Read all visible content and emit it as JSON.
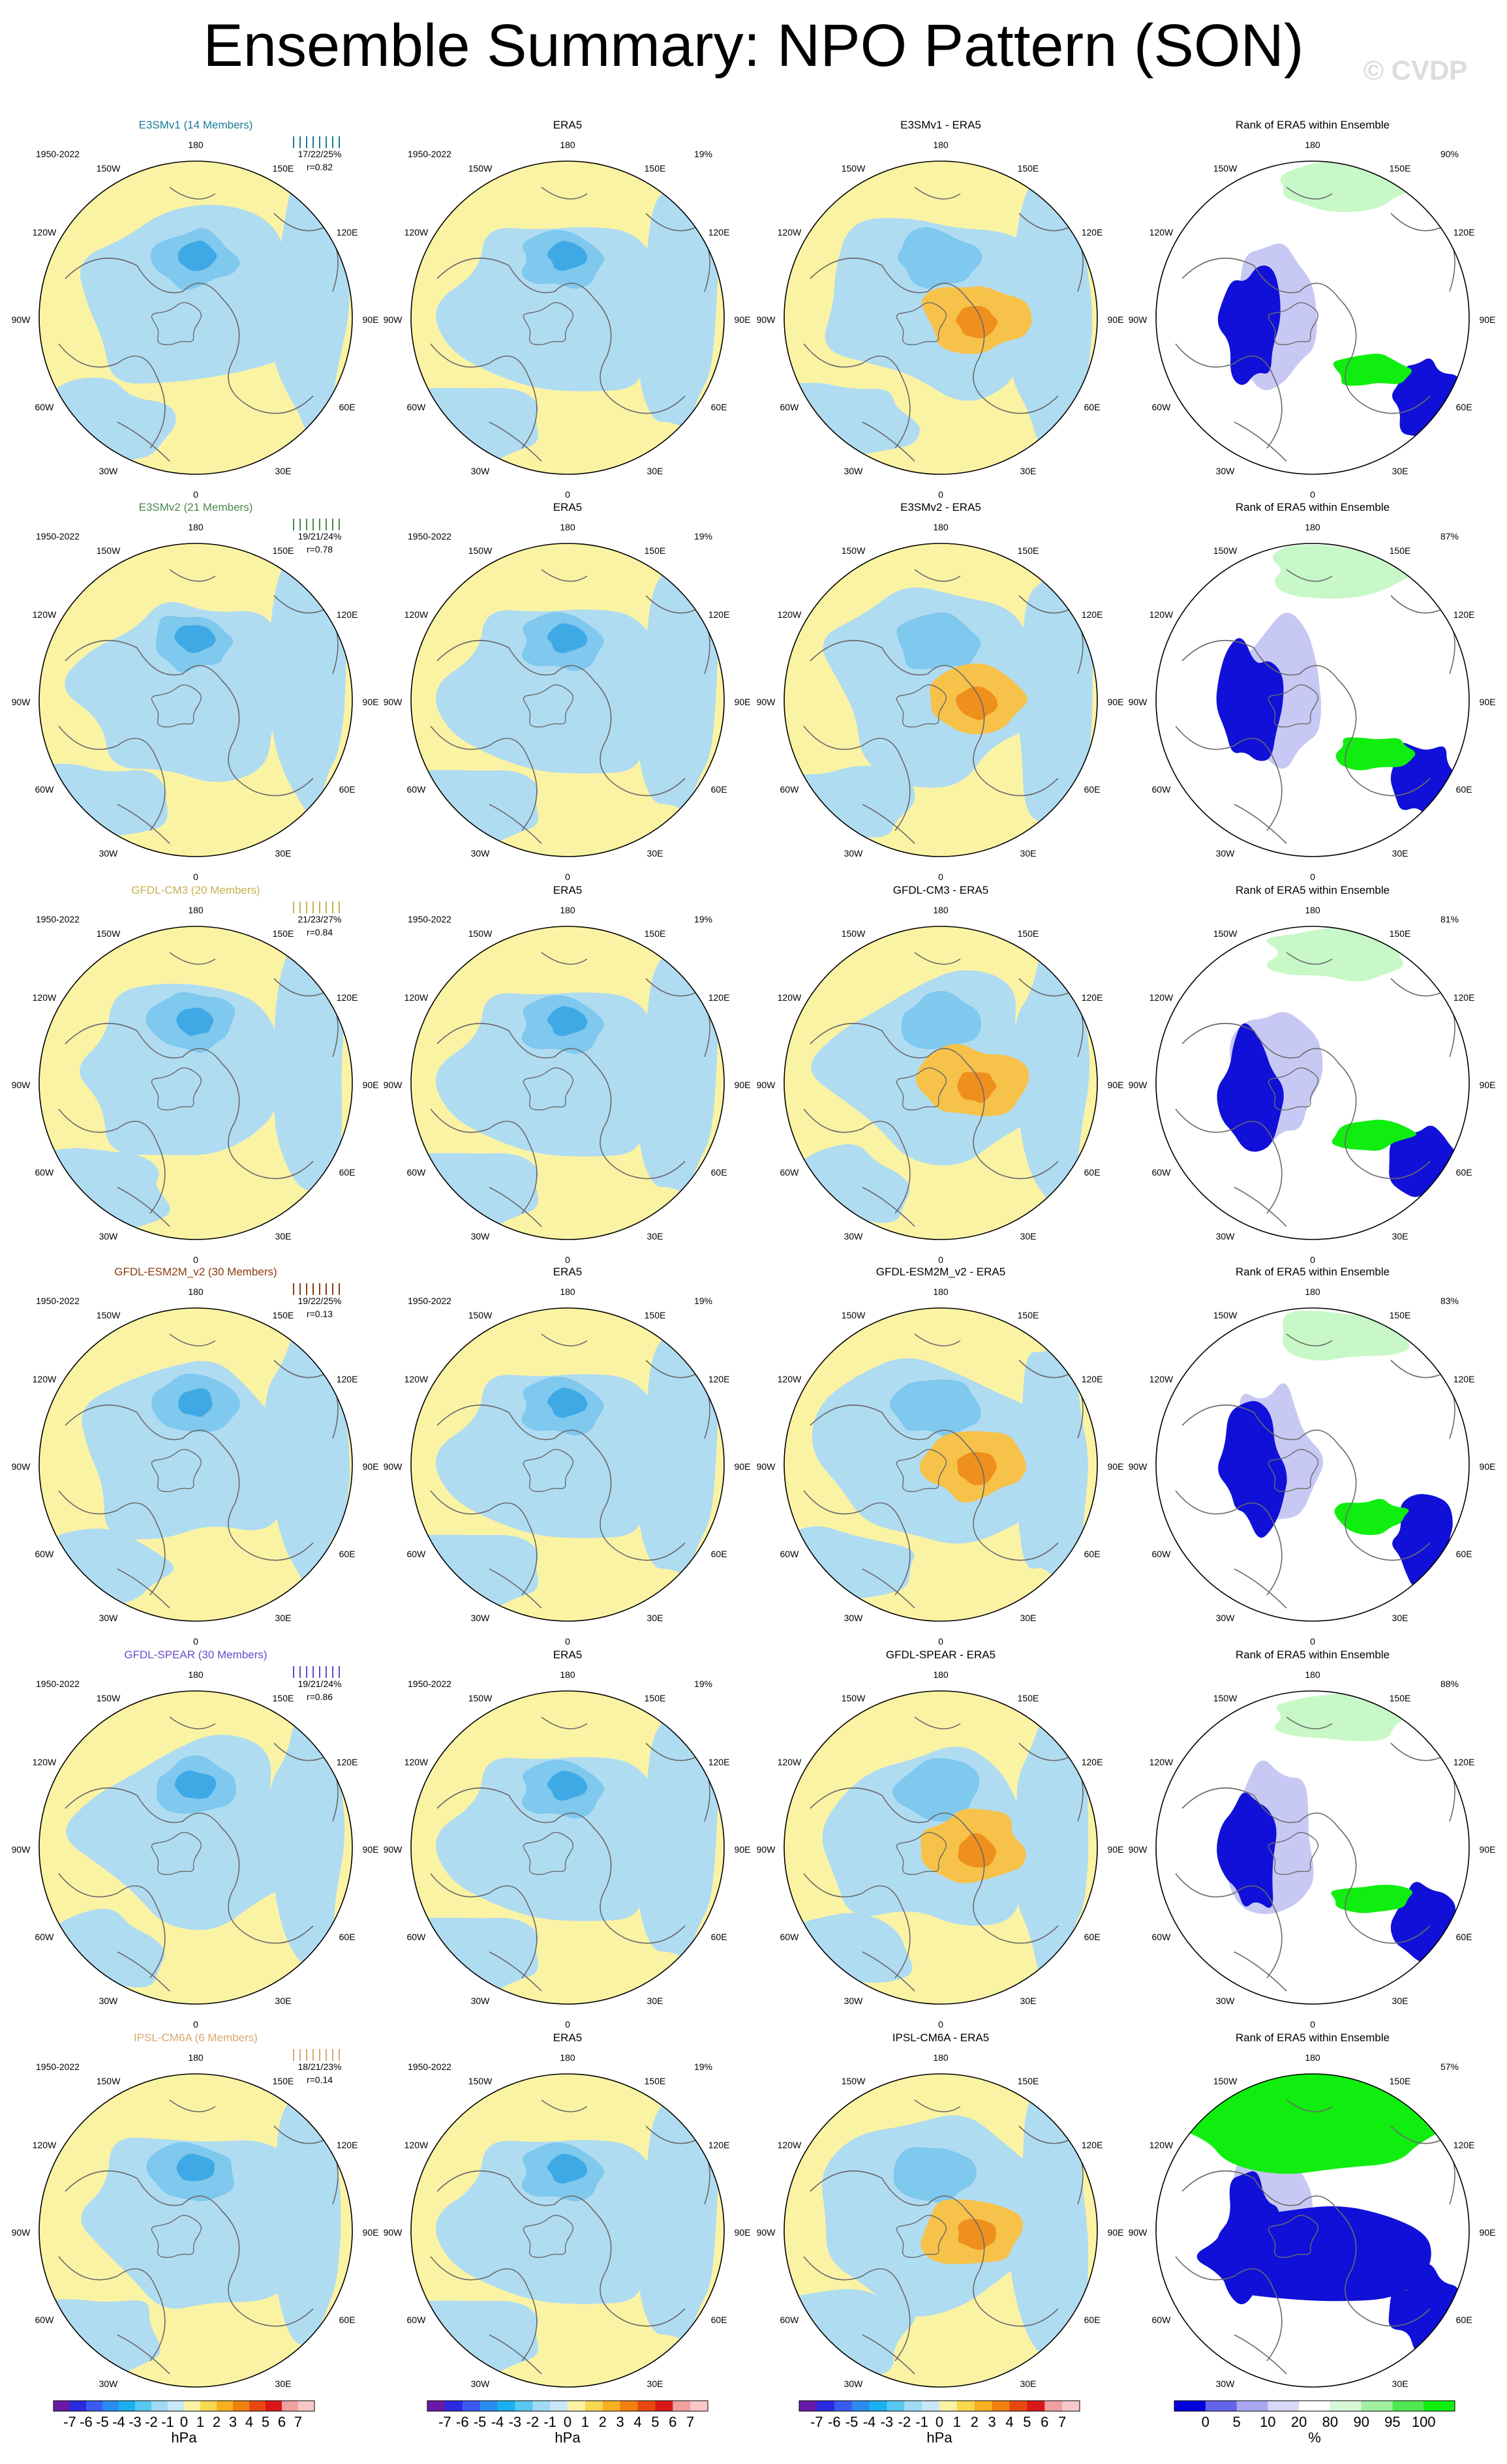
{
  "title": "Ensemble Summary: NPO Pattern (SON)",
  "watermark": "© CVDP",
  "colors": {
    "ocean_blue": "#b0dcf2",
    "neg_light": "#7fc8ee",
    "neg_mid": "#3fa9e6",
    "pos_yellow": "#fbf3a4",
    "pos_orange": "#f7c24a",
    "pos_dark": "#ef8f1c",
    "rank_blue": "#1010d8",
    "rank_lightblue": "#c8c8f4",
    "rank_green": "#10ee10",
    "rank_lightgreen": "#c8f8c8",
    "coast": "#6a6a6a"
  },
  "lon_labels": [
    "180",
    "150E",
    "120E",
    "90E",
    "60E",
    "30E",
    "0",
    "30W",
    "60W",
    "90W",
    "120W",
    "150W"
  ],
  "era5_label": "ERA5",
  "era5_period": "1950-2022",
  "era5_pct": "19%",
  "rank_title": "Rank of ERA5 within Ensemble",
  "rows": [
    {
      "model": "E3SMv1 (14 Members)",
      "model_color": "#1a7a9a",
      "period": "1950-2022",
      "stats": "17/22/25%",
      "corr": "r=0.82",
      "diff_title": "E3SMv1 - ERA5",
      "rank_pct": "90%"
    },
    {
      "model": "E3SMv2 (21 Members)",
      "model_color": "#4a8a4a",
      "period": "1950-2022",
      "stats": "19/21/24%",
      "corr": "r=0.78",
      "diff_title": "E3SMv2 - ERA5",
      "rank_pct": "87%"
    },
    {
      "model": "GFDL-CM3 (20 Members)",
      "model_color": "#c8b050",
      "period": "1950-2022",
      "stats": "21/23/27%",
      "corr": "r=0.84",
      "diff_title": "GFDL-CM3 - ERA5",
      "rank_pct": "81%"
    },
    {
      "model": "GFDL-ESM2M_v2 (30 Members)",
      "model_color": "#8a3a10",
      "period": "1950-2022",
      "stats": "19/22/25%",
      "corr": "r=0.13",
      "diff_title": "GFDL-ESM2M_v2 - ERA5",
      "rank_pct": "83%"
    },
    {
      "model": "GFDL-SPEAR (30 Members)",
      "model_color": "#6a4ac8",
      "period": "1950-2022",
      "stats": "19/21/24%",
      "corr": "r=0.86",
      "diff_title": "GFDL-SPEAR - ERA5",
      "rank_pct": "88%"
    },
    {
      "model": "IPSL-CM6A (6 Members)",
      "model_color": "#d8a870",
      "period": "1950-2022",
      "stats": "18/21/23%",
      "corr": "r=0.14",
      "diff_title": "IPSL-CM6A - ERA5",
      "rank_pct": "57%"
    }
  ],
  "colorbar_hpa": {
    "labels": [
      "-7",
      "-6",
      "-5",
      "-4",
      "-3",
      "-2",
      "-1",
      "0",
      "1",
      "2",
      "3",
      "4",
      "5",
      "6",
      "7"
    ],
    "unit": "hPa",
    "colors": [
      "#6a1aa8",
      "#2a2ae0",
      "#3a5af0",
      "#2a8af0",
      "#1ab0f0",
      "#58c8f0",
      "#a0daf4",
      "#c8e8f8",
      "#fbf3a4",
      "#f8d850",
      "#f8b020",
      "#f08010",
      "#e84810",
      "#d81818",
      "#f0a0a0",
      "#f8c8c8"
    ]
  },
  "colorbar_rank": {
    "labels": [
      "0",
      "5",
      "10",
      "20",
      "80",
      "90",
      "95",
      "100"
    ],
    "unit": "%",
    "colors": [
      "#0000dc",
      "#6464e8",
      "#a8a8f0",
      "#d8d8f8",
      "#ffffff",
      "#d8f8d8",
      "#a0f0a0",
      "#50e850",
      "#10ee10"
    ]
  },
  "chart_data": {
    "type": "heatmap",
    "description_kind": "polar stereographic sea-level-pressure anomaly maps, 6 models x 4 columns",
    "columns": [
      "model ensemble mean",
      "ERA5",
      "model minus ERA5",
      "Rank of ERA5 within Ensemble"
    ],
    "contour_levels_hpa": [
      -7,
      -6,
      -5,
      -4,
      -3,
      -2,
      -1,
      0,
      1,
      2,
      3,
      4,
      5,
      6,
      7
    ],
    "rank_levels_pct": [
      0,
      5,
      10,
      20,
      80,
      90,
      95,
      100
    ],
    "rows": [
      "E3SMv1",
      "E3SMv2",
      "GFDL-CM3",
      "GFDL-ESM2M_v2",
      "GFDL-SPEAR",
      "IPSL-CM6A"
    ]
  }
}
